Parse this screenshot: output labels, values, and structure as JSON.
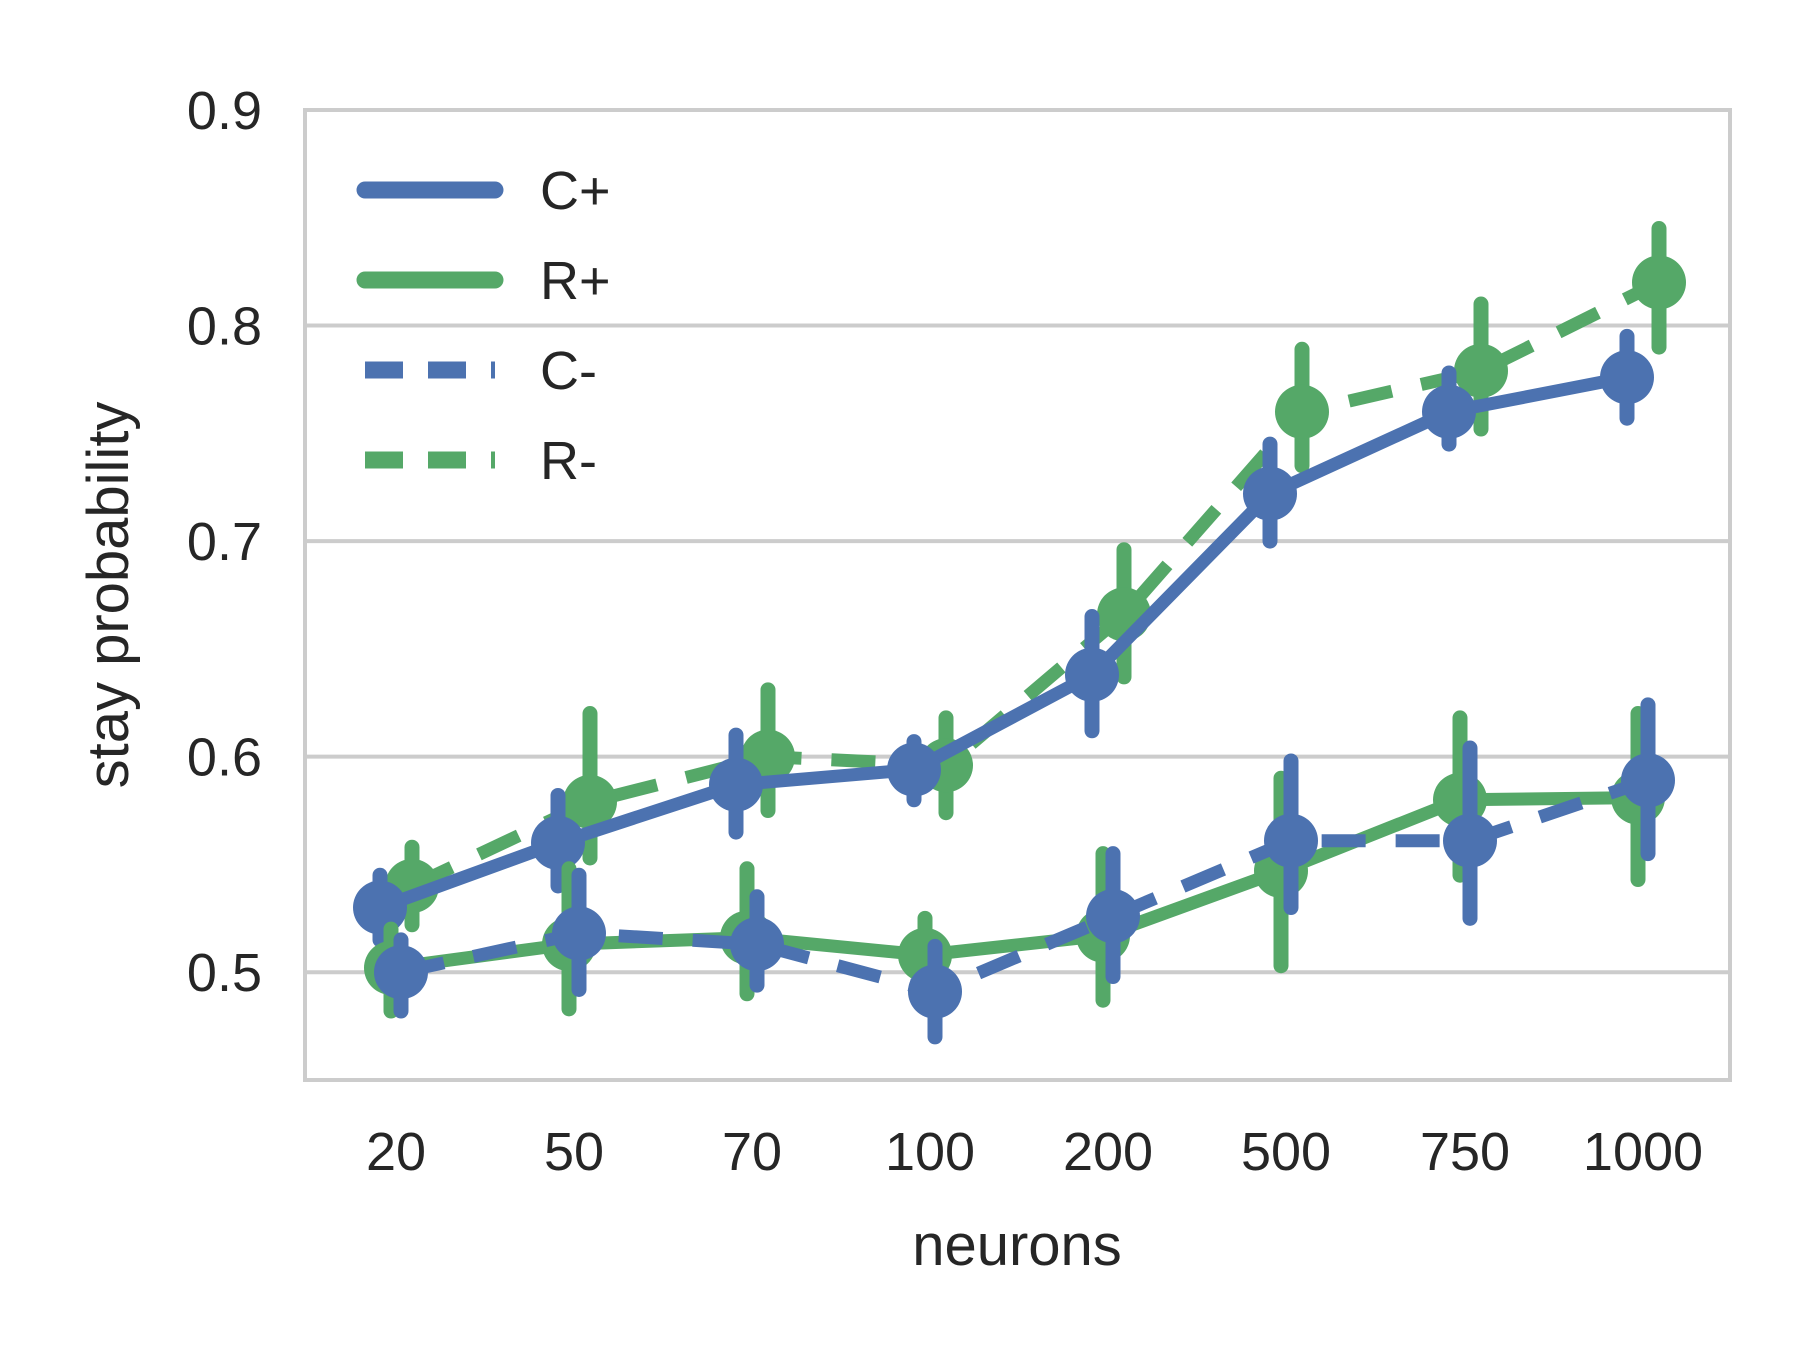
{
  "chart_data": {
    "type": "line",
    "xlabel": "neurons",
    "ylabel": "stay probability",
    "categories": [
      "20",
      "50",
      "70",
      "100",
      "200",
      "500",
      "750",
      "1000"
    ],
    "ylim": [
      0.45,
      0.9
    ],
    "yticks": [
      0.5,
      0.6,
      0.7,
      0.8,
      0.9
    ],
    "grid": "horizontal",
    "legend_position": "top-left",
    "series": [
      {
        "name": "C+",
        "color": "#4c72b0",
        "dash": "solid",
        "values": [
          0.53,
          0.56,
          0.587,
          0.594,
          0.638,
          0.722,
          0.76,
          0.776
        ],
        "err_low": [
          0.515,
          0.54,
          0.565,
          0.58,
          0.612,
          0.7,
          0.745,
          0.757
        ],
        "err_high": [
          0.545,
          0.582,
          0.61,
          0.607,
          0.665,
          0.745,
          0.778,
          0.795
        ]
      },
      {
        "name": "R+",
        "color": "#55a868",
        "dash": "solid",
        "values": [
          0.502,
          0.513,
          0.516,
          0.508,
          0.517,
          0.547,
          0.58,
          0.581
        ],
        "err_low": [
          0.482,
          0.483,
          0.49,
          0.49,
          0.487,
          0.503,
          0.545,
          0.543
        ],
        "err_high": [
          0.52,
          0.548,
          0.548,
          0.525,
          0.555,
          0.59,
          0.618,
          0.62
        ]
      },
      {
        "name": "C-",
        "color": "#4c72b0",
        "dash": "dashed",
        "values": [
          0.5,
          0.518,
          0.513,
          0.491,
          0.526,
          0.561,
          0.561,
          0.589
        ],
        "err_low": [
          0.482,
          0.492,
          0.494,
          0.47,
          0.498,
          0.53,
          0.525,
          0.555
        ],
        "err_high": [
          0.515,
          0.545,
          0.535,
          0.512,
          0.555,
          0.598,
          0.604,
          0.624
        ]
      },
      {
        "name": "R-",
        "color": "#55a868",
        "dash": "dashed",
        "values": [
          0.54,
          0.579,
          0.6,
          0.596,
          0.666,
          0.76,
          0.779,
          0.82
        ],
        "err_low": [
          0.522,
          0.553,
          0.575,
          0.574,
          0.637,
          0.735,
          0.752,
          0.79
        ],
        "err_high": [
          0.558,
          0.62,
          0.631,
          0.618,
          0.696,
          0.789,
          0.81,
          0.845
        ]
      }
    ]
  }
}
